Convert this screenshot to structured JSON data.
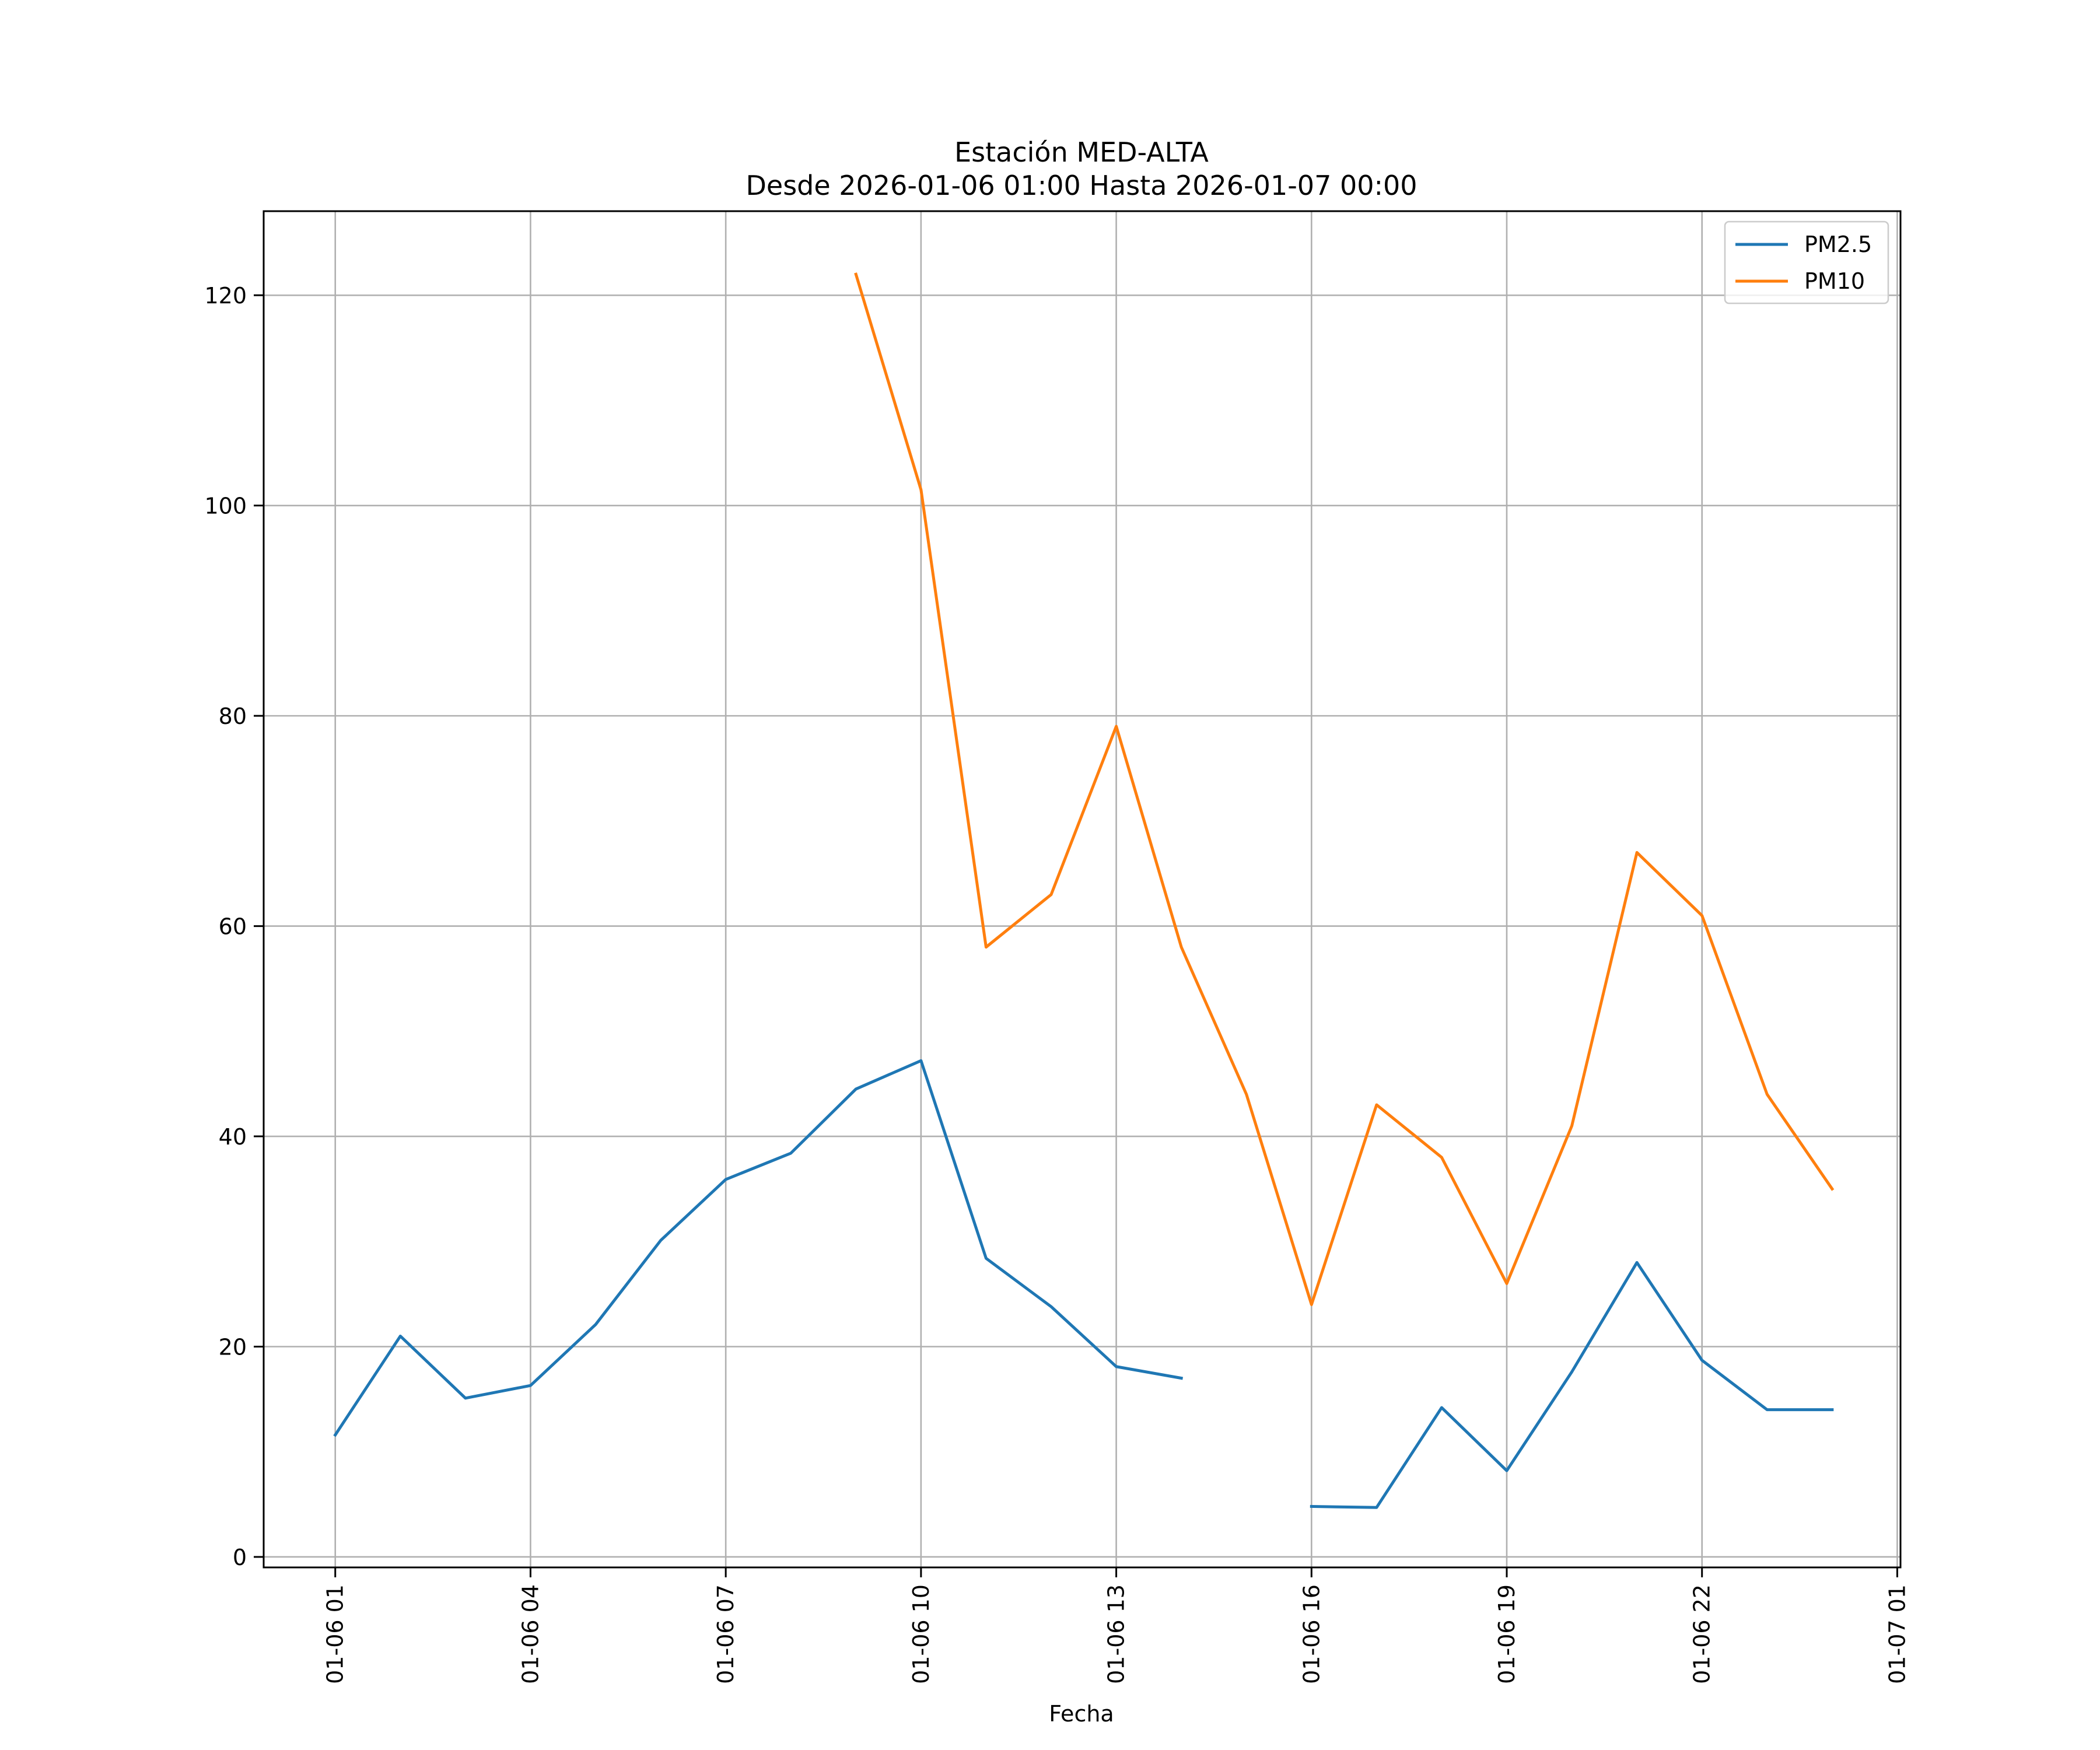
{
  "chart_data": {
    "type": "line",
    "title": "Estación MED-ALTA",
    "subtitle": "Desde 2026-01-06 01:00 Hasta 2026-01-07 00:00",
    "xlabel": "Fecha",
    "ylabel": "",
    "x_hours": [
      1,
      2,
      3,
      4,
      5,
      6,
      7,
      8,
      9,
      10,
      11,
      12,
      13,
      14,
      15,
      16,
      17,
      18,
      19,
      20,
      21,
      22,
      23,
      24
    ],
    "xlim": [
      -0.1,
      25.05
    ],
    "ylim": [
      -1,
      128
    ],
    "x_ticks": [
      {
        "value": 1,
        "label": "01-06 01"
      },
      {
        "value": 4,
        "label": "01-06 04"
      },
      {
        "value": 7,
        "label": "01-06 07"
      },
      {
        "value": 10,
        "label": "01-06 10"
      },
      {
        "value": 13,
        "label": "01-06 13"
      },
      {
        "value": 16,
        "label": "01-06 16"
      },
      {
        "value": 19,
        "label": "01-06 19"
      },
      {
        "value": 22,
        "label": "01-06 22"
      },
      {
        "value": 25,
        "label": "01-07 01"
      }
    ],
    "y_ticks": [
      0,
      20,
      40,
      60,
      80,
      100,
      120
    ],
    "grid": true,
    "legend_position": "top-right",
    "series": [
      {
        "name": "PM2.5",
        "color": "#1f77b4",
        "values": [
          11.6,
          21,
          15.1,
          16.3,
          22.1,
          30.1,
          35.9,
          38.4,
          44.5,
          47.2,
          28.4,
          23.8,
          18.1,
          17,
          null,
          4.8,
          4.7,
          14.2,
          8.2,
          17.6,
          28,
          18.7,
          14,
          14
        ]
      },
      {
        "name": "PM10",
        "color": "#ff7f0e",
        "values": [
          null,
          null,
          null,
          null,
          null,
          null,
          null,
          null,
          122,
          101.5,
          58,
          63,
          79,
          58,
          44,
          24,
          43,
          38,
          26,
          41,
          67,
          61,
          44,
          35
        ]
      }
    ]
  }
}
